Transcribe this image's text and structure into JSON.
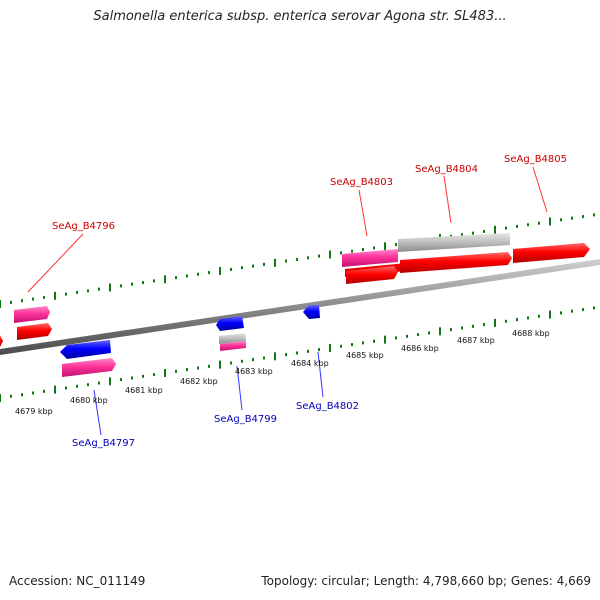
{
  "title": "Salmonella enterica subsp. enterica serovar Agona str. SL483...",
  "accession": "Accession: NC_011149",
  "summary": "Topology: circular; Length: 4,798,660 bp; Genes: 4,669",
  "colors": {
    "forward_cds": "#ff0000",
    "forward_pink": "#ff3399",
    "reverse_cds": "#0000ff",
    "grey_feature": "#aaaaaa",
    "ruler_ticks": "#117711",
    "forward_label": "#cc0000",
    "reverse_label": "#0000bb",
    "backbone": "#888888"
  },
  "kbp_labels": [
    "4679 kbp",
    "4680 kbp",
    "4681 kbp",
    "4682 kbp",
    "4683 kbp",
    "4684 kbp",
    "4685 kbp",
    "4686 kbp",
    "4687 kbp",
    "4688 kbp"
  ],
  "gene_labels": {
    "forward": [
      "SeAg_B4796",
      "SeAg_B4803",
      "SeAg_B4804",
      "SeAg_B4805"
    ],
    "reverse": [
      "SeAg_B4797",
      "SeAg_B4799",
      "SeAg_B4802"
    ]
  }
}
